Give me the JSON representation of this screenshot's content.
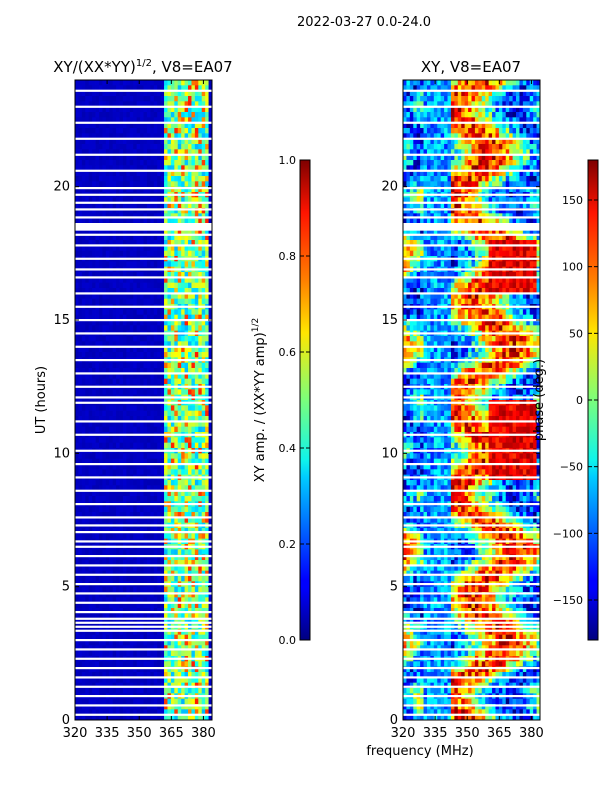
{
  "figure": {
    "suptitle": "2022-03-27 0.0-24.0"
  },
  "chart_data": [
    {
      "type": "heatmap",
      "title": "XY/(XX*YY)",
      "title_sup": "1/2",
      "title_suffix": ", V8=EA07",
      "xlabel": "",
      "ylabel": "UT (hours)",
      "x_ticks": [
        320,
        335,
        350,
        365,
        380
      ],
      "x_range": [
        320,
        384
      ],
      "y_ticks": [
        0,
        5,
        10,
        15,
        20
      ],
      "y_range": [
        0,
        24
      ],
      "colorbar": {
        "label": "XY amp. / (XX*YY amp)",
        "label_sup": "1/2",
        "ticks": [
          "0.0",
          "0.2",
          "0.4",
          "0.6",
          "0.8",
          "1.0"
        ],
        "range": [
          0,
          1
        ],
        "colormap": "jet"
      },
      "description_values": {
        "background_level": 0.05,
        "active_band_mhz": [
          362,
          382
        ],
        "active_level_range": [
          0.3,
          0.85
        ]
      }
    },
    {
      "type": "heatmap",
      "title": "XY, V8=EA07",
      "xlabel": "frequency (MHz)",
      "ylabel": "",
      "x_ticks": [
        320,
        335,
        350,
        365,
        380
      ],
      "x_range": [
        320,
        384
      ],
      "y_ticks": [
        0,
        5,
        10,
        15,
        20
      ],
      "y_range": [
        0,
        24
      ],
      "colorbar": {
        "label": "phase (deg.)",
        "ticks": [
          "150",
          "100",
          "50",
          "0",
          "−50",
          "−100",
          "−150"
        ],
        "tick_values": [
          150,
          100,
          50,
          0,
          -50,
          -100,
          -150
        ],
        "range": [
          -180,
          180
        ],
        "colormap": "jet"
      }
    }
  ],
  "flagged_rows_ut": [
    0.2,
    0.55,
    0.9,
    1.25,
    1.6,
    1.95,
    2.3,
    2.65,
    3.0,
    3.35,
    3.5,
    3.65,
    3.8,
    4.05,
    4.4,
    4.75,
    5.1,
    5.45,
    5.8,
    6.15,
    6.5,
    6.7,
    7.05,
    7.3,
    7.6,
    8.1,
    8.6,
    9.1,
    9.6,
    10.1,
    10.7,
    11.2,
    11.9,
    12.1,
    12.5,
    13.0,
    13.5,
    14.0,
    14.5,
    15.0,
    15.5,
    16.0,
    16.6,
    16.9,
    17.3,
    17.8,
    18.2,
    18.6,
    18.85,
    19.15,
    19.4,
    19.7,
    19.95,
    20.6,
    21.2,
    21.8,
    22.4,
    23.0,
    23.6
  ]
}
